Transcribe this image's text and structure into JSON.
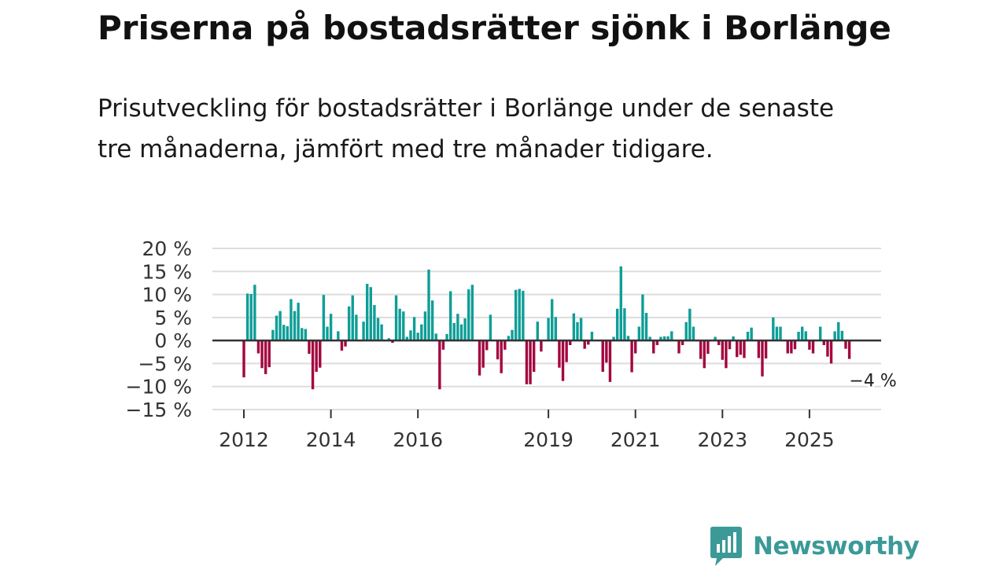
{
  "title": "Priserna på bostadsrätter sjönk i Borlänge",
  "subtitle": "Prisutveckling för bostadsrätter i Borlänge under de senaste tre månaderna, jämfört med tre månader tidigare.",
  "brand": {
    "name": "Newsworthy",
    "logo_icon": "newsworthy-logo-icon",
    "color": "#3b9a98"
  },
  "colors": {
    "positive": "#0e9e97",
    "negative": "#a3063f",
    "grid": "#dddddd",
    "zero": "#333333"
  },
  "chart_data": {
    "type": "bar",
    "title": "Priserna på bostadsrätter sjönk i Borlänge",
    "ylabel": "",
    "xlabel": "",
    "ylim": [
      -15,
      20
    ],
    "grid": true,
    "y_ticks": [
      20,
      15,
      10,
      5,
      0,
      -5,
      -10,
      -15
    ],
    "y_tick_labels": [
      "20 %",
      "15 %",
      "10 %",
      "5 %",
      "0 %",
      "−5 %",
      "−10 %",
      "−15 %"
    ],
    "x_ticks": [
      2012,
      2014,
      2016,
      2019,
      2021,
      2023,
      2025
    ],
    "x_tick_labels": [
      "2012",
      "2014",
      "2016",
      "2019",
      "2021",
      "2023",
      "2025"
    ],
    "start": {
      "year": 2012,
      "month": 1
    },
    "frequency": "monthly",
    "last_label": "−4 %",
    "values": [
      -8,
      10.2,
      10.1,
      12.1,
      -2.8,
      -6,
      -7.3,
      -5.8,
      2.3,
      5.4,
      6.4,
      3.4,
      3.1,
      9,
      6.4,
      8.2,
      2.7,
      2.5,
      -2.9,
      -10.6,
      -6.8,
      -5.9,
      9.9,
      3,
      5.8,
      0,
      2,
      -2.2,
      -1.3,
      7.4,
      9.8,
      5.6,
      0,
      4.1,
      12.3,
      11.6,
      7.7,
      4.9,
      3.5,
      0,
      0.5,
      -0.5,
      9.8,
      6.9,
      6.3,
      0.8,
      2.2,
      5.1,
      1.7,
      3.5,
      6.3,
      15.4,
      8.7,
      1.5,
      -10.6,
      -2,
      1.4,
      10.7,
      3.8,
      5.8,
      3.5,
      4.8,
      11.1,
      12.1,
      0,
      -7.6,
      -5.9,
      -2.1,
      5.6,
      0,
      -4.1,
      -7.1,
      -2,
      1,
      2.3,
      11,
      11.2,
      10.8,
      -9.5,
      -9.5,
      -6.8,
      4.1,
      -2.4,
      0,
      4.9,
      9,
      5.1,
      -5.9,
      -8.8,
      -4.7,
      -1,
      5.9,
      4,
      4.9,
      -1.8,
      -0.9,
      1.9,
      0,
      0,
      -6.8,
      -4.8,
      -9,
      0.8,
      6.9,
      16.1,
      7,
      1,
      -6.9,
      -2.8,
      3,
      10,
      6,
      0.8,
      -2.8,
      -1,
      0.8,
      0.9,
      0.9,
      2,
      0,
      -2.8,
      -1,
      4,
      6.9,
      3,
      0,
      -4,
      -6,
      -2.9,
      0,
      0.8,
      -1,
      -4.2,
      -6,
      -1.9,
      0.9,
      -3.6,
      -3.1,
      -3.8,
      1.9,
      2.8,
      0,
      -3.8,
      -7.8,
      -3.9,
      0,
      5,
      3,
      3,
      0,
      -2.8,
      -2.8,
      -1.9,
      1.9,
      3,
      2,
      -2,
      -2.8,
      0,
      3,
      -1,
      -3.5,
      -5,
      2,
      4,
      2.1,
      -1.8,
      -4
    ]
  }
}
